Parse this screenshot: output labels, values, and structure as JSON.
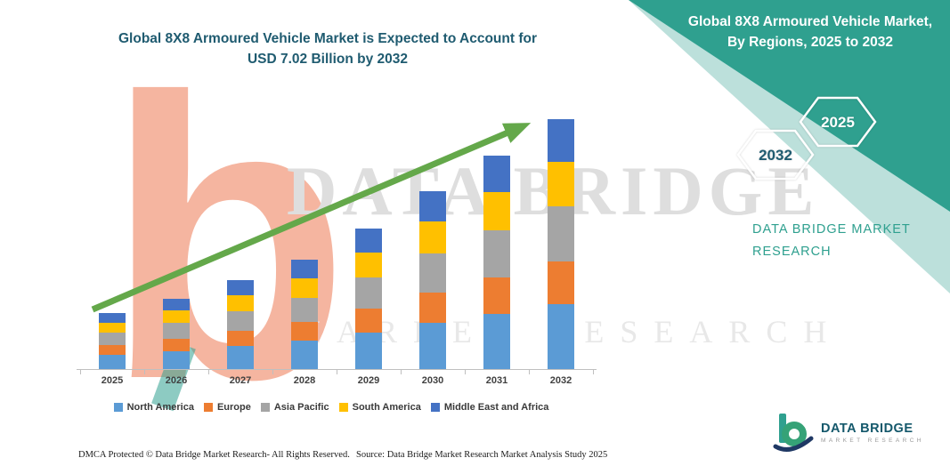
{
  "main_title": {
    "line1": "Global 8X8 Armoured Vehicle Market is Expected to Account for",
    "line2": "USD 7.02 Billion by 2032"
  },
  "side_panel": {
    "title": "Global 8X8 Armoured Vehicle Market, By Regions, 2025 to 2032",
    "hexagon_back_label": "2032",
    "hexagon_front_label": "2025",
    "brand_line1": "DATA BRIDGE MARKET",
    "brand_line2": "RESEARCH",
    "panel_color": "#2FA08F"
  },
  "watermark": {
    "letter": "b",
    "line1": "DATA BRIDGE",
    "line2": "MARKET RESEARCH"
  },
  "chart_data": {
    "type": "bar",
    "stacked": true,
    "title": "Global 8X8 Armoured Vehicle Market is Expected to Account for USD 7.02 Billion by 2032",
    "unit": "USD Billion",
    "categories": [
      "2025",
      "2026",
      "2027",
      "2028",
      "2029",
      "2030",
      "2031",
      "2032"
    ],
    "series": [
      {
        "name": "North America",
        "color": "#5B9BD5",
        "values": [
          0.41,
          0.51,
          0.64,
          0.81,
          1.03,
          1.29,
          1.56,
          1.83
        ]
      },
      {
        "name": "Europe",
        "color": "#ED7D31",
        "values": [
          0.27,
          0.34,
          0.42,
          0.53,
          0.67,
          0.84,
          1.02,
          1.19
        ]
      },
      {
        "name": "Asia Pacific",
        "color": "#A5A5A5",
        "values": [
          0.35,
          0.44,
          0.55,
          0.68,
          0.87,
          1.09,
          1.32,
          1.54
        ]
      },
      {
        "name": "South America",
        "color": "#FFC000",
        "values": [
          0.28,
          0.36,
          0.45,
          0.56,
          0.71,
          0.89,
          1.08,
          1.26
        ]
      },
      {
        "name": "Middle East and Africa",
        "color": "#4472C4",
        "values": [
          0.27,
          0.33,
          0.42,
          0.52,
          0.67,
          0.84,
          1.02,
          1.2
        ]
      }
    ],
    "totals": [
      1.58,
      1.98,
      2.48,
      3.1,
      3.95,
      4.95,
      6.0,
      7.02
    ],
    "ylim": [
      0,
      7.5
    ],
    "grid": false,
    "legend_position": "bottom",
    "trend_arrow": {
      "shown": true,
      "color": "#64A84A"
    }
  },
  "footer": {
    "dmca": "DMCA Protected © Data Bridge Market Research-  All Rights Reserved.",
    "source": "Source: Data Bridge Market Research  Market Analysis Study 2025",
    "logo_title": "DATA BRIDGE",
    "logo_subtitle": "MARKET RESEARCH"
  }
}
